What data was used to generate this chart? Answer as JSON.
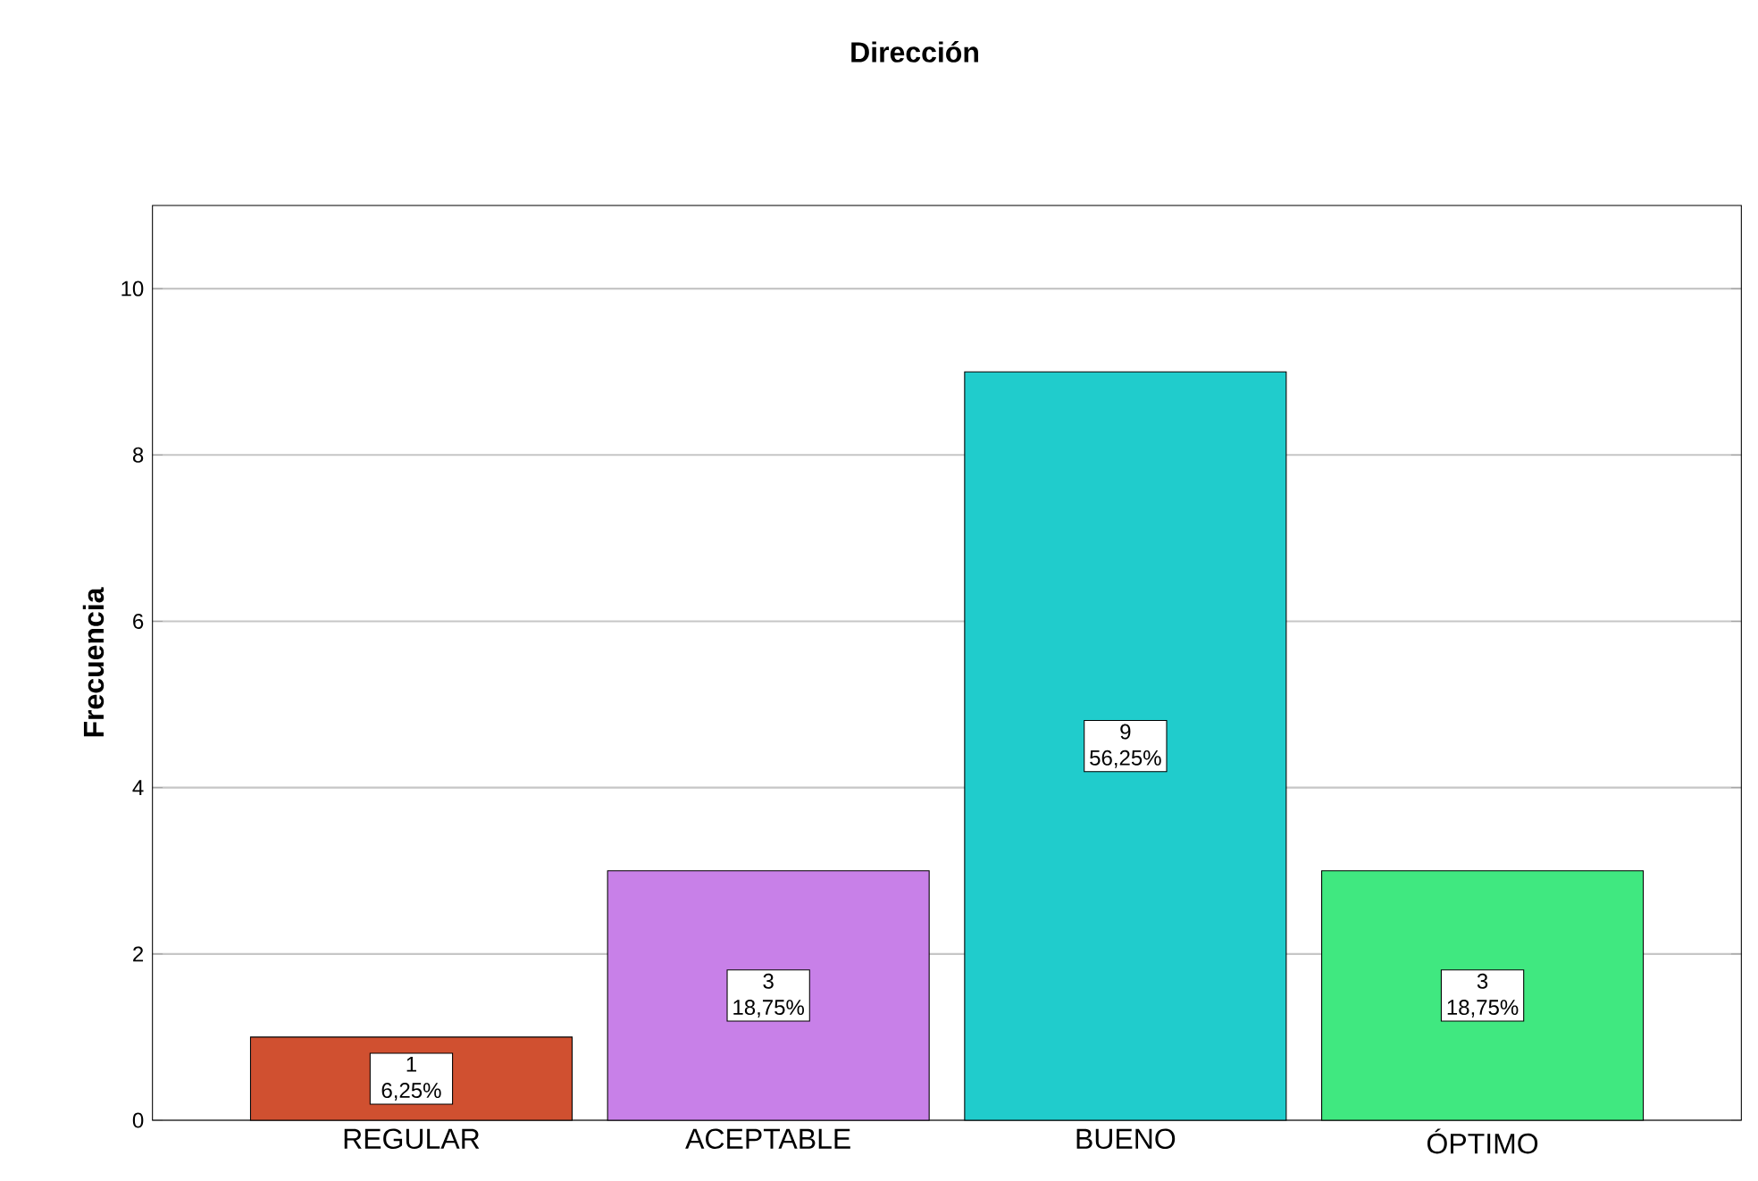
{
  "chart_data": {
    "type": "bar",
    "title": "Dirección",
    "ylabel": "Frecuencia",
    "categories": [
      "REGULAR",
      "ACEPTABLE",
      "BUENO",
      "ÓPTIMO"
    ],
    "values": [
      1,
      3,
      9,
      3
    ],
    "colors": [
      "#d05030",
      "#c880e8",
      "#20cccc",
      "#40e880"
    ],
    "value_labels": [
      "1 6,25%",
      "3 18,75%",
      "9 56,25%",
      "3 18,75%"
    ],
    "ylim": [
      0,
      11
    ],
    "yticks": [
      0,
      2,
      4,
      6,
      8,
      10
    ],
    "grid": "y"
  }
}
